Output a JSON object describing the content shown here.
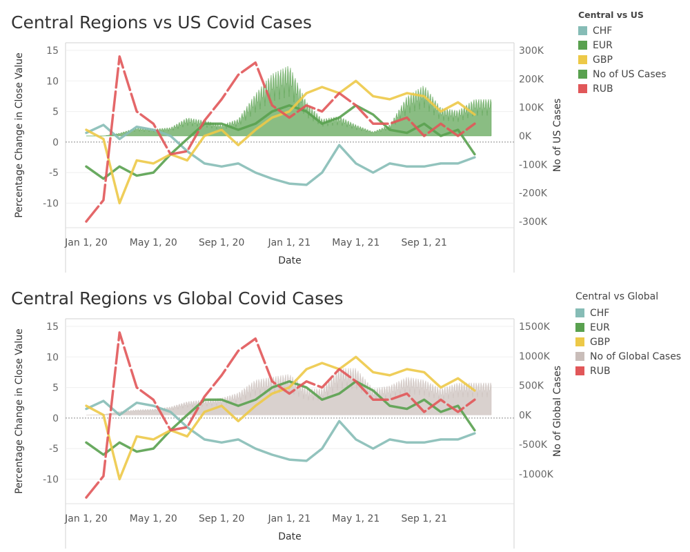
{
  "charts": [
    {
      "title": "Central Regions vs US Covid Cases",
      "legend_title": "Central vs US",
      "chart_data": {
        "type": "line",
        "title": "Central Regions vs US Covid Cases",
        "xlabel": "Date",
        "ylabel": "Percentage Change in Close Value",
        "y2label": "No of US Cases",
        "x_ticks": [
          "Jan 1, 20",
          "May 1, 20",
          "Sep 1, 20",
          "Jan 1, 21",
          "May 1, 21",
          "Sep 1, 21"
        ],
        "y_ticks": [
          15,
          10,
          5,
          0,
          -5,
          -10
        ],
        "ylim": [
          -13,
          15
        ],
        "y2_ticks": [
          "300K",
          "200K",
          "100K",
          "0K",
          "-100K",
          "-200K",
          "-300K"
        ],
        "y2lim": [
          -300000,
          300000
        ],
        "grid": true,
        "legend_position": "right",
        "case_series": "No of US Cases",
        "series": [
          {
            "name": "CHF",
            "color": "#86bcb6",
            "x": [
              "2020-01-01",
              "2020-02-01",
              "2020-03-01",
              "2020-04-01",
              "2020-05-01",
              "2020-06-01",
              "2020-07-01",
              "2020-08-01",
              "2020-09-01",
              "2020-10-01",
              "2020-11-01",
              "2020-12-01",
              "2021-01-01",
              "2021-02-01",
              "2021-03-01",
              "2021-04-01",
              "2021-05-01",
              "2021-06-01",
              "2021-07-01",
              "2021-08-01",
              "2021-09-01",
              "2021-10-01",
              "2021-11-01",
              "2021-12-01"
            ],
            "values": [
              1.5,
              2.8,
              0.5,
              2.5,
              2.0,
              1.0,
              -1.5,
              -3.5,
              -4.0,
              -3.5,
              -5.0,
              -6.0,
              -6.8,
              -7.0,
              -5.0,
              -0.5,
              -3.5,
              -5.0,
              -3.5,
              -4.0,
              -4.0,
              -3.5,
              -3.5,
              -2.5
            ]
          },
          {
            "name": "EUR",
            "color": "#59a14f",
            "x": [
              "2020-01-01",
              "2020-02-01",
              "2020-03-01",
              "2020-04-01",
              "2020-05-01",
              "2020-06-01",
              "2020-07-01",
              "2020-08-01",
              "2020-09-01",
              "2020-10-01",
              "2020-11-01",
              "2020-12-01",
              "2021-01-01",
              "2021-02-01",
              "2021-03-01",
              "2021-04-01",
              "2021-05-01",
              "2021-06-01",
              "2021-07-01",
              "2021-08-01",
              "2021-09-01",
              "2021-10-01",
              "2021-11-01",
              "2021-12-01"
            ],
            "values": [
              -4.0,
              -6.0,
              -4.0,
              -5.5,
              -5.0,
              -2.0,
              0.5,
              3.0,
              3.0,
              2.0,
              3.0,
              5.0,
              6.0,
              5.0,
              3.0,
              4.0,
              6.0,
              4.5,
              2.0,
              1.5,
              3.0,
              1.0,
              2.0,
              -2.0
            ]
          },
          {
            "name": "GBP",
            "color": "#edc948",
            "x": [
              "2020-01-01",
              "2020-02-01",
              "2020-03-01",
              "2020-04-01",
              "2020-05-01",
              "2020-06-01",
              "2020-07-01",
              "2020-08-01",
              "2020-09-01",
              "2020-10-01",
              "2020-11-01",
              "2020-12-01",
              "2021-01-01",
              "2021-02-01",
              "2021-03-01",
              "2021-04-01",
              "2021-05-01",
              "2021-06-01",
              "2021-07-01",
              "2021-08-01",
              "2021-09-01",
              "2021-10-01",
              "2021-11-01",
              "2021-12-01"
            ],
            "values": [
              2.0,
              0.5,
              -10.0,
              -3.0,
              -3.5,
              -2.0,
              -3.0,
              1.0,
              2.0,
              -0.5,
              2.0,
              4.0,
              5.0,
              8.0,
              9.0,
              8.0,
              10.0,
              7.5,
              7.0,
              8.0,
              7.5,
              5.0,
              6.5,
              4.5
            ]
          },
          {
            "name": "RUB",
            "color": "#e15759",
            "dashed": true,
            "x": [
              "2020-01-01",
              "2020-02-01",
              "2020-03-01",
              "2020-04-01",
              "2020-05-01",
              "2020-06-01",
              "2020-07-01",
              "2020-08-01",
              "2020-09-01",
              "2020-10-01",
              "2020-11-01",
              "2020-12-01",
              "2021-01-01",
              "2021-02-01",
              "2021-03-01",
              "2021-04-01",
              "2021-05-01",
              "2021-06-01",
              "2021-07-01",
              "2021-08-01",
              "2021-09-01",
              "2021-10-01",
              "2021-11-01",
              "2021-12-01"
            ],
            "values": [
              -13.0,
              -9.5,
              14.0,
              5.0,
              3.0,
              -2.0,
              -1.5,
              3.5,
              7.0,
              11.0,
              13.0,
              6.0,
              4.0,
              6.0,
              5.0,
              8.0,
              6.0,
              3.0,
              3.0,
              4.0,
              1.0,
              3.0,
              1.0,
              3.0
            ]
          }
        ],
        "cases": {
          "x": [
            "2020-01-01",
            "2020-02-01",
            "2020-03-01",
            "2020-04-01",
            "2020-05-01",
            "2020-06-01",
            "2020-07-01",
            "2020-08-01",
            "2020-09-01",
            "2020-10-01",
            "2020-11-01",
            "2020-12-01",
            "2021-01-01",
            "2021-02-01",
            "2021-03-01",
            "2021-04-01",
            "2021-05-01",
            "2021-06-01",
            "2021-07-01",
            "2021-08-01",
            "2021-09-01",
            "2021-10-01",
            "2021-11-01",
            "2021-12-01"
          ],
          "values": [
            0,
            0,
            10000,
            30000,
            25000,
            30000,
            65000,
            55000,
            40000,
            60000,
            150000,
            220000,
            250000,
            120000,
            60000,
            70000,
            40000,
            15000,
            40000,
            140000,
            180000,
            100000,
            90000,
            130000
          ]
        }
      },
      "legend": [
        {
          "label": "CHF",
          "color": "#86bcb6"
        },
        {
          "label": "EUR",
          "color": "#59a14f"
        },
        {
          "label": "GBP",
          "color": "#edc948"
        },
        {
          "label": "No of US Cases",
          "color": "#59a14f"
        },
        {
          "label": "RUB",
          "color": "#e15759"
        }
      ],
      "case_color": "#59a14f"
    },
    {
      "title": "Central Regions vs Global Covid Cases",
      "legend_title": "Central vs Global",
      "chart_data": {
        "type": "line",
        "title": "Central Regions vs Global Covid Cases",
        "xlabel": "Date",
        "ylabel": "Percentage Change in Close Value",
        "y2label": "No of Global Cases",
        "x_ticks": [
          "Jan 1, 20",
          "May 1, 20",
          "Sep 1, 20",
          "Jan 1, 21",
          "May 1, 21",
          "Sep 1, 21"
        ],
        "y_ticks": [
          15,
          10,
          5,
          0,
          -5,
          -10
        ],
        "ylim": [
          -13,
          15
        ],
        "y2_ticks": [
          "1500K",
          "1000K",
          "500K",
          "0K",
          "-500K",
          "-1000K"
        ],
        "y2lim": [
          -1400000,
          1500000
        ],
        "grid": true,
        "legend_position": "right",
        "case_series": "No of Global Cases",
        "series": [
          {
            "name": "CHF",
            "color": "#86bcb6",
            "x": [
              "2020-01-01",
              "2020-02-01",
              "2020-03-01",
              "2020-04-01",
              "2020-05-01",
              "2020-06-01",
              "2020-07-01",
              "2020-08-01",
              "2020-09-01",
              "2020-10-01",
              "2020-11-01",
              "2020-12-01",
              "2021-01-01",
              "2021-02-01",
              "2021-03-01",
              "2021-04-01",
              "2021-05-01",
              "2021-06-01",
              "2021-07-01",
              "2021-08-01",
              "2021-09-01",
              "2021-10-01",
              "2021-11-01",
              "2021-12-01"
            ],
            "values": [
              1.5,
              2.8,
              0.5,
              2.5,
              2.0,
              1.0,
              -1.5,
              -3.5,
              -4.0,
              -3.5,
              -5.0,
              -6.0,
              -6.8,
              -7.0,
              -5.0,
              -0.5,
              -3.5,
              -5.0,
              -3.5,
              -4.0,
              -4.0,
              -3.5,
              -3.5,
              -2.5
            ]
          },
          {
            "name": "EUR",
            "color": "#59a14f",
            "x": [
              "2020-01-01",
              "2020-02-01",
              "2020-03-01",
              "2020-04-01",
              "2020-05-01",
              "2020-06-01",
              "2020-07-01",
              "2020-08-01",
              "2020-09-01",
              "2020-10-01",
              "2020-11-01",
              "2020-12-01",
              "2021-01-01",
              "2021-02-01",
              "2021-03-01",
              "2021-04-01",
              "2021-05-01",
              "2021-06-01",
              "2021-07-01",
              "2021-08-01",
              "2021-09-01",
              "2021-10-01",
              "2021-11-01",
              "2021-12-01"
            ],
            "values": [
              -4.0,
              -6.0,
              -4.0,
              -5.5,
              -5.0,
              -2.0,
              0.5,
              3.0,
              3.0,
              2.0,
              3.0,
              5.0,
              6.0,
              5.0,
              3.0,
              4.0,
              6.0,
              4.5,
              2.0,
              1.5,
              3.0,
              1.0,
              2.0,
              -2.0
            ]
          },
          {
            "name": "GBP",
            "color": "#edc948",
            "x": [
              "2020-01-01",
              "2020-02-01",
              "2020-03-01",
              "2020-04-01",
              "2020-05-01",
              "2020-06-01",
              "2020-07-01",
              "2020-08-01",
              "2020-09-01",
              "2020-10-01",
              "2020-11-01",
              "2020-12-01",
              "2021-01-01",
              "2021-02-01",
              "2021-03-01",
              "2021-04-01",
              "2021-05-01",
              "2021-06-01",
              "2021-07-01",
              "2021-08-01",
              "2021-09-01",
              "2021-10-01",
              "2021-11-01",
              "2021-12-01"
            ],
            "values": [
              2.0,
              0.5,
              -10.0,
              -3.0,
              -3.5,
              -2.0,
              -3.0,
              1.0,
              2.0,
              -0.5,
              2.0,
              4.0,
              5.0,
              8.0,
              9.0,
              8.0,
              10.0,
              7.5,
              7.0,
              8.0,
              7.5,
              5.0,
              6.5,
              4.5
            ]
          },
          {
            "name": "RUB",
            "color": "#e15759",
            "dashed": true,
            "x": [
              "2020-01-01",
              "2020-02-01",
              "2020-03-01",
              "2020-04-01",
              "2020-05-01",
              "2020-06-01",
              "2020-07-01",
              "2020-08-01",
              "2020-09-01",
              "2020-10-01",
              "2020-11-01",
              "2020-12-01",
              "2021-01-01",
              "2021-02-01",
              "2021-03-01",
              "2021-04-01",
              "2021-05-01",
              "2021-06-01",
              "2021-07-01",
              "2021-08-01",
              "2021-09-01",
              "2021-10-01",
              "2021-11-01",
              "2021-12-01"
            ],
            "values": [
              -13.0,
              -9.5,
              14.0,
              5.0,
              3.0,
              -2.0,
              -1.5,
              3.5,
              7.0,
              11.0,
              13.0,
              6.0,
              4.0,
              6.0,
              5.0,
              8.0,
              6.0,
              3.0,
              3.0,
              4.0,
              1.0,
              3.0,
              1.0,
              3.0
            ]
          }
        ],
        "cases": {
          "x": [
            "2020-01-01",
            "2020-02-01",
            "2020-03-01",
            "2020-04-01",
            "2020-05-01",
            "2020-06-01",
            "2020-07-01",
            "2020-08-01",
            "2020-09-01",
            "2020-10-01",
            "2020-11-01",
            "2020-12-01",
            "2021-01-01",
            "2021-02-01",
            "2021-03-01",
            "2021-04-01",
            "2021-05-01",
            "2021-06-01",
            "2021-07-01",
            "2021-08-01",
            "2021-09-01",
            "2021-10-01",
            "2021-11-01",
            "2021-12-01"
          ],
          "values": [
            0,
            5000,
            60000,
            90000,
            100000,
            140000,
            230000,
            260000,
            290000,
            380000,
            600000,
            650000,
            700000,
            450000,
            450000,
            800000,
            800000,
            450000,
            500000,
            650000,
            600000,
            450000,
            550000,
            550000
          ]
        }
      },
      "legend": [
        {
          "label": "CHF",
          "color": "#86bcb6"
        },
        {
          "label": "EUR",
          "color": "#59a14f"
        },
        {
          "label": "GBP",
          "color": "#edc948"
        },
        {
          "label": "No of Global Cases",
          "color": "#c9bdb9"
        },
        {
          "label": "RUB",
          "color": "#e15759"
        }
      ],
      "case_color": "#c9bdb9"
    }
  ]
}
